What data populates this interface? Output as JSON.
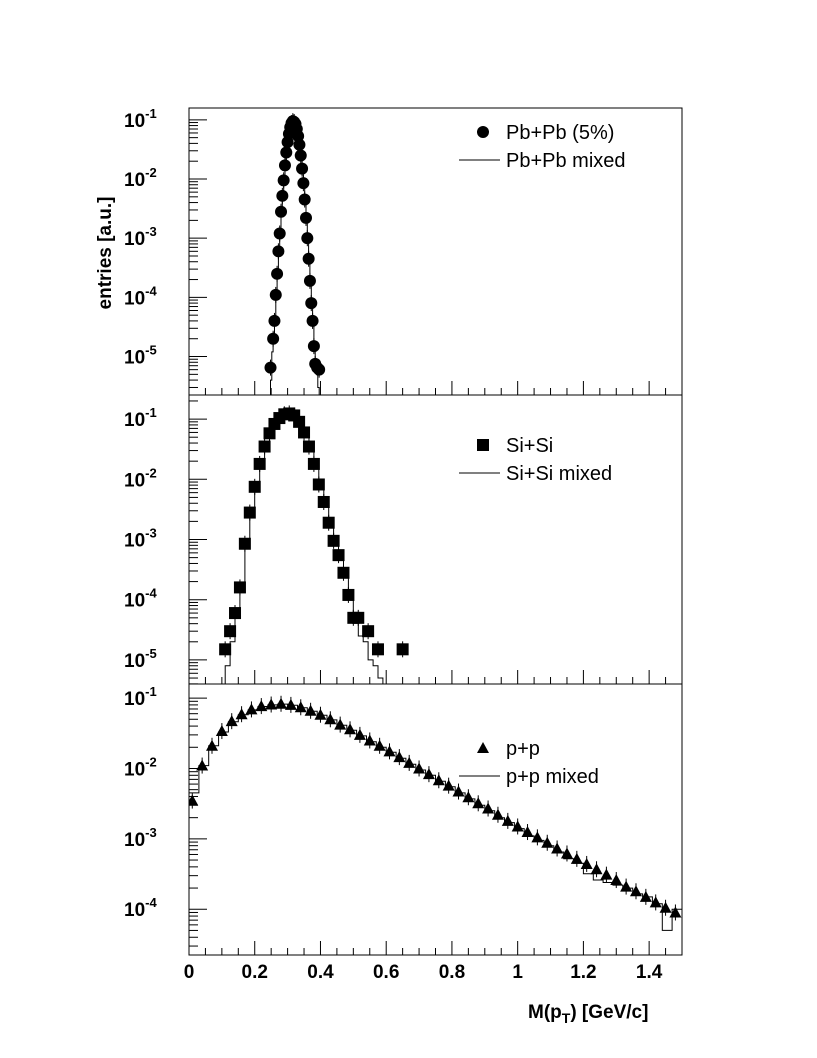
{
  "chart_data": {
    "type": "scatter",
    "ylabel": "entries [a.u.]",
    "xlabel_main": "M(p",
    "xlabel_sub": "T",
    "xlabel_tail": ") [GeV/c]",
    "xlim": [
      0,
      1.5
    ],
    "x_ticks": [
      "0",
      "0.2",
      "0.4",
      "0.6",
      "0.8",
      "1",
      "1.2",
      "1.4"
    ],
    "x_tick_values": [
      0,
      0.2,
      0.4,
      0.6,
      0.8,
      1.0,
      1.2,
      1.4
    ],
    "log_scale_y": true,
    "grid": false,
    "legend_position": "top-right",
    "panels": [
      {
        "id": "pbpb",
        "marker": "circle",
        "legend_data": "Pb+Pb (5%)",
        "legend_mixed": "Pb+Pb mixed",
        "ylim_exp": [
          -5.65,
          -0.8
        ],
        "y_ticks": [
          {
            "base": "10",
            "exp": "-1",
            "value": -1
          },
          {
            "base": "10",
            "exp": "-2",
            "value": -2
          },
          {
            "base": "10",
            "exp": "-3",
            "value": -3
          },
          {
            "base": "10",
            "exp": "-4",
            "value": -4
          },
          {
            "base": "10",
            "exp": "-5",
            "value": -5
          }
        ],
        "x": [
          0.248,
          0.256,
          0.26,
          0.264,
          0.268,
          0.272,
          0.276,
          0.28,
          0.284,
          0.288,
          0.292,
          0.296,
          0.3,
          0.304,
          0.308,
          0.312,
          0.316,
          0.32,
          0.324,
          0.328,
          0.332,
          0.336,
          0.34,
          0.344,
          0.348,
          0.352,
          0.356,
          0.36,
          0.364,
          0.368,
          0.372,
          0.376,
          0.38,
          0.384,
          0.39,
          0.396
        ],
        "values": [
          6.5e-06,
          2e-05,
          4e-05,
          0.00011,
          0.00025,
          0.0006,
          0.0012,
          0.0028,
          0.0052,
          0.0095,
          0.017,
          0.028,
          0.042,
          0.058,
          0.075,
          0.088,
          0.095,
          0.092,
          0.085,
          0.07,
          0.053,
          0.038,
          0.025,
          0.015,
          0.0085,
          0.0045,
          0.0022,
          0.001,
          0.00045,
          0.00019,
          8e-05,
          4e-05,
          1.5e-05,
          7.5e-06,
          6.5e-06,
          6e-06
        ],
        "mixed_x": [
          0.244,
          0.248,
          0.252,
          0.256,
          0.26,
          0.264,
          0.268,
          0.272,
          0.276,
          0.28,
          0.284,
          0.288,
          0.292,
          0.296,
          0.3,
          0.304,
          0.308,
          0.312,
          0.316,
          0.32,
          0.324,
          0.328,
          0.332,
          0.336,
          0.34,
          0.344,
          0.348,
          0.352,
          0.356,
          0.36,
          0.364,
          0.368,
          0.372,
          0.376,
          0.38,
          0.384,
          0.388,
          0.392,
          0.396
        ],
        "mixed_values": [
          0,
          4e-06,
          1.2e-05,
          2.5e-05,
          5e-05,
          0.00012,
          0.00026,
          0.0006,
          0.0012,
          0.0027,
          0.005,
          0.0092,
          0.0165,
          0.027,
          0.041,
          0.057,
          0.074,
          0.087,
          0.094,
          0.091,
          0.084,
          0.069,
          0.052,
          0.037,
          0.024,
          0.0145,
          0.0082,
          0.0043,
          0.0021,
          0.00095,
          0.00043,
          0.00018,
          7.5e-05,
          3.5e-05,
          1.3e-05,
          7e-06,
          5e-06,
          3e-06,
          0
        ]
      },
      {
        "id": "sisi",
        "marker": "square",
        "legend_data": "Si+Si",
        "legend_mixed": "Si+Si mixed",
        "ylim_exp": [
          -5.4,
          -0.6
        ],
        "y_ticks": [
          {
            "base": "10",
            "exp": "-1",
            "value": -1
          },
          {
            "base": "10",
            "exp": "-2",
            "value": -2
          },
          {
            "base": "10",
            "exp": "-3",
            "value": -3
          },
          {
            "base": "10",
            "exp": "-4",
            "value": -4
          },
          {
            "base": "10",
            "exp": "-5",
            "value": -5
          }
        ],
        "x": [
          0.11,
          0.125,
          0.14,
          0.155,
          0.17,
          0.185,
          0.2,
          0.215,
          0.23,
          0.245,
          0.26,
          0.275,
          0.29,
          0.305,
          0.32,
          0.335,
          0.35,
          0.365,
          0.38,
          0.395,
          0.41,
          0.425,
          0.44,
          0.455,
          0.47,
          0.485,
          0.5,
          0.515,
          0.545,
          0.575,
          0.65
        ],
        "values": [
          1.5e-05,
          3e-05,
          6e-05,
          0.00016,
          0.00085,
          0.0028,
          0.0075,
          0.018,
          0.035,
          0.058,
          0.083,
          0.104,
          0.12,
          0.124,
          0.115,
          0.09,
          0.06,
          0.035,
          0.018,
          0.0082,
          0.0042,
          0.0019,
          0.00095,
          0.00055,
          0.00028,
          0.00012,
          5e-05,
          5e-05,
          3e-05,
          1.5e-05,
          1.5e-05
        ],
        "mixed_x": [
          0.11,
          0.125,
          0.14,
          0.155,
          0.17,
          0.185,
          0.2,
          0.215,
          0.23,
          0.245,
          0.26,
          0.275,
          0.29,
          0.305,
          0.32,
          0.335,
          0.35,
          0.365,
          0.38,
          0.395,
          0.41,
          0.425,
          0.44,
          0.455,
          0.47,
          0.485,
          0.5,
          0.515,
          0.53,
          0.545,
          0.56,
          0.575,
          0.59
        ],
        "mixed_values": [
          8e-06,
          2e-05,
          5e-05,
          0.00015,
          0.0008,
          0.0026,
          0.007,
          0.017,
          0.034,
          0.057,
          0.082,
          0.102,
          0.118,
          0.123,
          0.114,
          0.089,
          0.059,
          0.034,
          0.0175,
          0.008,
          0.004,
          0.0018,
          0.0009,
          0.0005,
          0.00027,
          0.0001,
          5e-05,
          2.5e-05,
          2e-05,
          1e-05,
          8e-06,
          5e-06,
          0
        ]
      },
      {
        "id": "pp",
        "marker": "triangle",
        "legend_data": "p+p",
        "legend_mixed": "p+p mixed",
        "ylim_exp": [
          -4.65,
          -0.8
        ],
        "y_ticks": [
          {
            "base": "10",
            "exp": "-1",
            "value": -1
          },
          {
            "base": "10",
            "exp": "-2",
            "value": -2
          },
          {
            "base": "10",
            "exp": "-3",
            "value": -3
          },
          {
            "base": "10",
            "exp": "-4",
            "value": -4
          }
        ],
        "x": [
          0.01,
          0.04,
          0.07,
          0.1,
          0.13,
          0.16,
          0.19,
          0.22,
          0.25,
          0.28,
          0.31,
          0.34,
          0.37,
          0.4,
          0.43,
          0.46,
          0.49,
          0.52,
          0.55,
          0.58,
          0.61,
          0.64,
          0.67,
          0.7,
          0.73,
          0.76,
          0.79,
          0.82,
          0.85,
          0.88,
          0.91,
          0.94,
          0.97,
          1.0,
          1.03,
          1.06,
          1.09,
          1.12,
          1.15,
          1.18,
          1.21,
          1.24,
          1.27,
          1.3,
          1.33,
          1.36,
          1.39,
          1.42,
          1.45,
          1.48
        ],
        "values": [
          0.0035,
          0.011,
          0.021,
          0.034,
          0.047,
          0.059,
          0.069,
          0.077,
          0.081,
          0.083,
          0.08,
          0.074,
          0.066,
          0.058,
          0.05,
          0.042,
          0.036,
          0.03,
          0.025,
          0.021,
          0.0175,
          0.0145,
          0.012,
          0.01,
          0.0083,
          0.0068,
          0.0057,
          0.0047,
          0.0039,
          0.0032,
          0.0027,
          0.0022,
          0.0018,
          0.0015,
          0.00125,
          0.00105,
          0.00088,
          0.00073,
          0.00062,
          0.00052,
          0.00044,
          0.00037,
          0.00031,
          0.00026,
          0.00021,
          0.00018,
          0.00015,
          0.000125,
          0.000105,
          9e-05
        ],
        "mixed_x": [
          0.0,
          0.03,
          0.06,
          0.09,
          0.12,
          0.15,
          0.18,
          0.21,
          0.24,
          0.27,
          0.3,
          0.33,
          0.36,
          0.39,
          0.42,
          0.45,
          0.48,
          0.51,
          0.54,
          0.57,
          0.6,
          0.63,
          0.66,
          0.69,
          0.72,
          0.75,
          0.78,
          0.81,
          0.84,
          0.87,
          0.9,
          0.93,
          0.96,
          0.99,
          1.02,
          1.05,
          1.08,
          1.11,
          1.14,
          1.17,
          1.2,
          1.23,
          1.26,
          1.29,
          1.32,
          1.35,
          1.38,
          1.41,
          1.44,
          1.47,
          1.5
        ],
        "mixed_values": [
          0.0045,
          0.011,
          0.021,
          0.033,
          0.046,
          0.058,
          0.068,
          0.076,
          0.08,
          0.082,
          0.079,
          0.073,
          0.065,
          0.057,
          0.049,
          0.041,
          0.035,
          0.029,
          0.024,
          0.02,
          0.017,
          0.014,
          0.0115,
          0.0095,
          0.008,
          0.0066,
          0.0055,
          0.0045,
          0.0037,
          0.003,
          0.0025,
          0.002,
          0.0017,
          0.0014,
          0.0011,
          0.00095,
          0.0008,
          0.00065,
          0.00052,
          0.00045,
          0.00032,
          0.00026,
          0.00024,
          0.00022,
          0.0002,
          0.000165,
          0.00015,
          0.00012,
          5e-05,
          0.0001,
          0.0001
        ]
      }
    ]
  }
}
